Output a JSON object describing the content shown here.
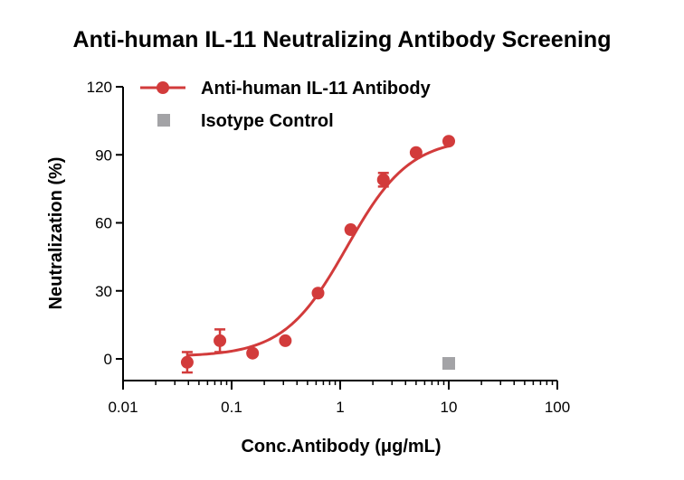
{
  "chart_data": {
    "type": "scatter",
    "title": "Anti-human IL-11 Neutralizing Antibody Screening",
    "xlabel": "Conc.Antibody (μg/mL)",
    "ylabel": "Neutralization (%)",
    "x_scale": "log",
    "xlim": [
      0.01,
      100
    ],
    "ylim": [
      -5,
      120
    ],
    "x_ticks": [
      0.01,
      0.1,
      1,
      10,
      100
    ],
    "x_tick_labels": [
      "0.01",
      "0.1",
      "1",
      "10",
      "100"
    ],
    "y_ticks": [
      0,
      30,
      60,
      90,
      120
    ],
    "y_tick_labels": [
      "0",
      "30",
      "60",
      "90",
      "120"
    ],
    "grid": false,
    "legend_position": "top-left",
    "series": [
      {
        "name": "Anti-human IL-11 Antibody",
        "color": "#d23b3b",
        "marker": "circle",
        "fit": "sigmoidal 4PL",
        "fit_params": {
          "bottom": 1.0,
          "top": 97.5,
          "ec50": 1.15,
          "hill": 1.5
        },
        "points": [
          {
            "x": 0.039,
            "y": -1.5,
            "err": 4.5
          },
          {
            "x": 0.078,
            "y": 8,
            "err": 5
          },
          {
            "x": 0.156,
            "y": 2.5,
            "err": 0
          },
          {
            "x": 0.3125,
            "y": 8,
            "err": 0
          },
          {
            "x": 0.625,
            "y": 29,
            "err": 0
          },
          {
            "x": 1.25,
            "y": 57,
            "err": 0
          },
          {
            "x": 2.5,
            "y": 79,
            "err": 3
          },
          {
            "x": 5,
            "y": 91,
            "err": 0
          },
          {
            "x": 10,
            "y": 96,
            "err": 0
          }
        ]
      },
      {
        "name": "Isotype Control",
        "color": "#a3a3a6",
        "marker": "square",
        "points": [
          {
            "x": 10,
            "y": -2
          }
        ]
      }
    ]
  }
}
